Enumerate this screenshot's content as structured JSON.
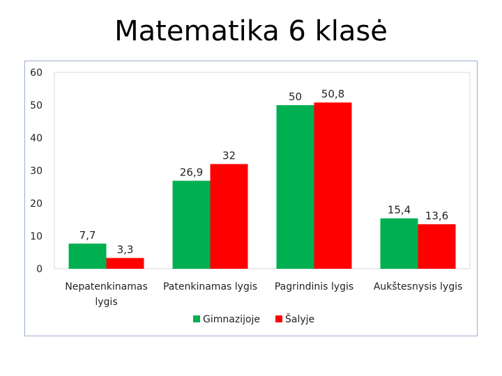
{
  "slide": {
    "title": "Matematika 6 klasė"
  },
  "chart_data": {
    "type": "bar",
    "title": "",
    "xlabel": "",
    "ylabel": "",
    "ylim": [
      0,
      60
    ],
    "yticks": [
      "0",
      "10",
      "20",
      "30",
      "40",
      "50",
      "60"
    ],
    "categories": [
      [
        "Nepatenkinamas",
        "lygis"
      ],
      [
        "Patenkinamas lygis"
      ],
      [
        "Pagrindinis lygis"
      ],
      [
        "Aukštesnysis lygis"
      ]
    ],
    "series": [
      {
        "name": "Gimnazijoje",
        "color": "#00b050",
        "values": [
          7.7,
          26.9,
          50,
          15.4
        ],
        "labels": [
          "7,7",
          "26,9",
          "50",
          "15,4"
        ]
      },
      {
        "name": "Šalyje",
        "color": "#ff0000",
        "values": [
          3.3,
          32,
          50.8,
          13.6
        ],
        "labels": [
          "3,3",
          "32",
          "50,8",
          "13,6"
        ]
      }
    ],
    "grid": false,
    "legend": "bottom"
  }
}
